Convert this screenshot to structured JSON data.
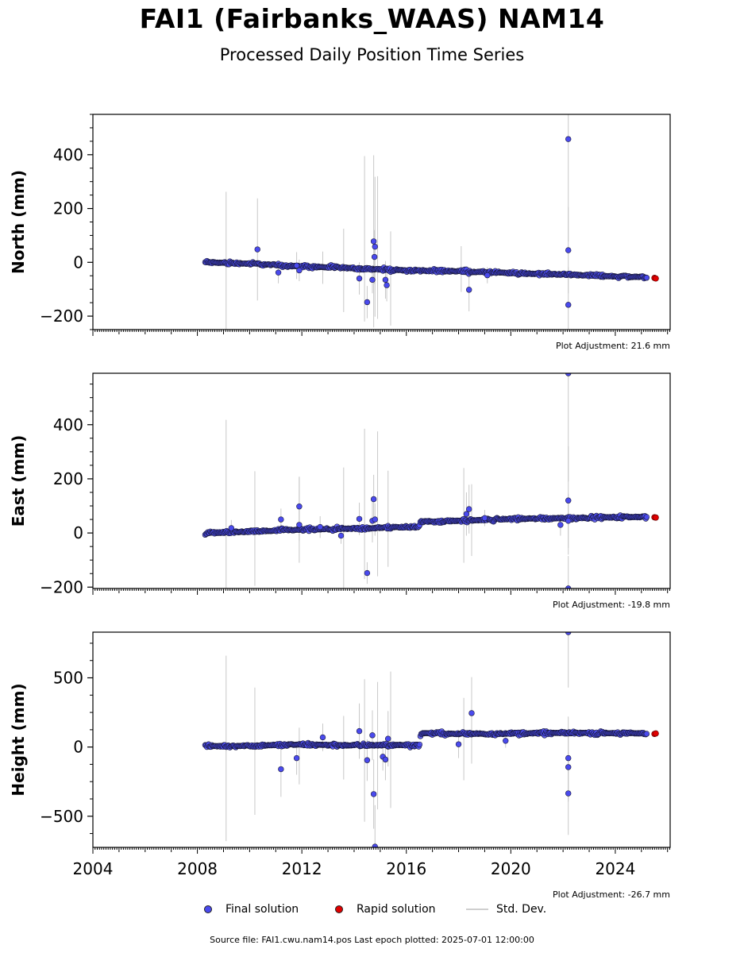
{
  "header": {
    "title": "FAI1 (Fairbanks_WAAS) NAM14",
    "subtitle": "Processed Daily Position Time Series"
  },
  "legend": {
    "final_label": "Final solution",
    "rapid_label": "Rapid solution",
    "std_label": "Std. Dev."
  },
  "footer": {
    "text": "Source file: FAI1.cwu.nam14.pos  Last epoch plotted: 2025-07-01 12:00:00"
  },
  "colors": {
    "final": "#4a4aee",
    "rapid": "#e00000",
    "stddev": "#c8c8c8",
    "marker_edge": "#1a1a3a"
  },
  "chart_data": [
    {
      "type": "scatter",
      "ylabel": "North (mm)",
      "adjustment": "Plot Adjustment: 21.6 mm",
      "xlim": [
        2004.0,
        2026.1
      ],
      "ylim": [
        -250,
        550
      ],
      "yticks": [
        -200,
        0,
        200,
        400
      ],
      "xticks": [
        2004,
        2008,
        2012,
        2016,
        2020,
        2024
      ],
      "show_xtick_labels": false,
      "trend": [
        [
          2008.3,
          0
        ],
        [
          2010.0,
          -5
        ],
        [
          2012.0,
          -15
        ],
        [
          2014.0,
          -22
        ],
        [
          2016.0,
          -30
        ],
        [
          2018.0,
          -33
        ],
        [
          2020.0,
          -40
        ],
        [
          2022.0,
          -45
        ],
        [
          2024.0,
          -52
        ],
        [
          2025.2,
          -55
        ]
      ],
      "outliers": [
        {
          "x": 2010.3,
          "y": 48,
          "err": 190
        },
        {
          "x": 2011.1,
          "y": -38,
          "err": 40
        },
        {
          "x": 2011.8,
          "y": -12,
          "err": 50
        },
        {
          "x": 2011.9,
          "y": -30,
          "err": 40
        },
        {
          "x": 2014.2,
          "y": -60,
          "err": 60
        },
        {
          "x": 2014.5,
          "y": -148,
          "err": 60
        },
        {
          "x": 2014.7,
          "y": -65,
          "err": 50
        },
        {
          "x": 2014.75,
          "y": 78,
          "err": 320
        },
        {
          "x": 2014.8,
          "y": 58,
          "err": 260
        },
        {
          "x": 2014.78,
          "y": 20,
          "err": 100
        },
        {
          "x": 2015.2,
          "y": -65,
          "err": 70
        },
        {
          "x": 2015.25,
          "y": -85,
          "err": 60
        },
        {
          "x": 2018.4,
          "y": -102,
          "err": 80
        },
        {
          "x": 2019.1,
          "y": -48,
          "err": 30
        },
        {
          "x": 2022.2,
          "y": 458,
          "err": 380
        },
        {
          "x": 2022.2,
          "y": 45,
          "err": 160
        },
        {
          "x": 2022.2,
          "y": -158,
          "err": 140
        }
      ],
      "std_spikes": [
        {
          "x": 2009.1,
          "lo": -250,
          "hi": 262
        },
        {
          "x": 2012.8,
          "lo": -80,
          "hi": 40
        },
        {
          "x": 2013.6,
          "lo": -185,
          "hi": 125
        },
        {
          "x": 2014.4,
          "lo": -220,
          "hi": 395
        },
        {
          "x": 2014.9,
          "lo": -210,
          "hi": 320
        },
        {
          "x": 2015.4,
          "lo": -235,
          "hi": 115
        },
        {
          "x": 2018.1,
          "lo": -110,
          "hi": 60
        }
      ],
      "rapid": [
        {
          "x": 2025.5,
          "y": -58
        },
        {
          "x": 2025.55,
          "y": -60
        }
      ]
    },
    {
      "type": "scatter",
      "ylabel": "East (mm)",
      "adjustment": "Plot Adjustment: -19.8 mm",
      "xlim": [
        2004.0,
        2026.1
      ],
      "ylim": [
        -205,
        590
      ],
      "yticks": [
        -200,
        0,
        200,
        400
      ],
      "xticks": [
        2004,
        2008,
        2012,
        2016,
        2020,
        2024
      ],
      "show_xtick_labels": false,
      "trend": [
        [
          2008.3,
          0
        ],
        [
          2010.0,
          5
        ],
        [
          2012.0,
          12
        ],
        [
          2014.0,
          16
        ],
        [
          2016.0,
          22
        ],
        [
          2016.5,
          25
        ],
        [
          2016.55,
          42
        ],
        [
          2018.0,
          45
        ],
        [
          2020.0,
          52
        ],
        [
          2022.0,
          55
        ],
        [
          2024.0,
          58
        ],
        [
          2025.2,
          60
        ]
      ],
      "outliers": [
        {
          "x": 2009.3,
          "y": 18,
          "err": 30
        },
        {
          "x": 2011.2,
          "y": 50,
          "err": 40
        },
        {
          "x": 2011.9,
          "y": 98,
          "err": 110
        },
        {
          "x": 2011.9,
          "y": 30,
          "err": 60
        },
        {
          "x": 2012.7,
          "y": 22,
          "err": 40
        },
        {
          "x": 2013.5,
          "y": -10,
          "err": 30
        },
        {
          "x": 2014.2,
          "y": 52,
          "err": 60
        },
        {
          "x": 2014.5,
          "y": -148,
          "err": 40
        },
        {
          "x": 2014.7,
          "y": 45,
          "err": 80
        },
        {
          "x": 2014.75,
          "y": 125,
          "err": 90
        },
        {
          "x": 2014.8,
          "y": 50,
          "err": 60
        },
        {
          "x": 2018.3,
          "y": 70,
          "err": 80
        },
        {
          "x": 2018.4,
          "y": 88,
          "err": 90
        },
        {
          "x": 2019.0,
          "y": 55,
          "err": 30
        },
        {
          "x": 2021.9,
          "y": 30,
          "err": 40
        },
        {
          "x": 2022.2,
          "y": 590,
          "err": 400
        },
        {
          "x": 2022.2,
          "y": 120,
          "err": 200
        },
        {
          "x": 2022.2,
          "y": 45,
          "err": 100
        },
        {
          "x": 2022.2,
          "y": -205,
          "err": 120
        }
      ],
      "std_spikes": [
        {
          "x": 2009.1,
          "lo": -205,
          "hi": 418
        },
        {
          "x": 2010.2,
          "lo": -195,
          "hi": 228
        },
        {
          "x": 2011.9,
          "lo": -110,
          "hi": 207
        },
        {
          "x": 2013.6,
          "lo": -205,
          "hi": 242
        },
        {
          "x": 2014.4,
          "lo": -170,
          "hi": 385
        },
        {
          "x": 2014.9,
          "lo": -160,
          "hi": 375
        },
        {
          "x": 2015.3,
          "lo": -125,
          "hi": 230
        },
        {
          "x": 2018.2,
          "lo": -110,
          "hi": 240
        },
        {
          "x": 2018.5,
          "lo": -85,
          "hi": 180
        }
      ],
      "rapid": [
        {
          "x": 2025.5,
          "y": 58
        },
        {
          "x": 2025.55,
          "y": 57
        }
      ]
    },
    {
      "type": "scatter",
      "ylabel": "Height (mm)",
      "adjustment": "Plot Adjustment: -26.7 mm",
      "xlim": [
        2004.0,
        2026.1
      ],
      "ylim": [
        -725,
        830
      ],
      "yticks": [
        -500,
        0,
        500
      ],
      "xticks": [
        2004,
        2008,
        2012,
        2016,
        2020,
        2024
      ],
      "show_xtick_labels": true,
      "trend": [
        [
          2008.3,
          5
        ],
        [
          2010.0,
          10
        ],
        [
          2012.0,
          18
        ],
        [
          2014.0,
          12
        ],
        [
          2016.0,
          15
        ],
        [
          2016.5,
          10
        ],
        [
          2016.55,
          100
        ],
        [
          2018.0,
          95
        ],
        [
          2020.0,
          98
        ],
        [
          2022.0,
          102
        ],
        [
          2024.0,
          100
        ],
        [
          2025.2,
          98
        ]
      ],
      "outliers": [
        {
          "x": 2011.2,
          "y": -160,
          "err": 200
        },
        {
          "x": 2011.8,
          "y": -80,
          "err": 120
        },
        {
          "x": 2012.8,
          "y": 70,
          "err": 100
        },
        {
          "x": 2014.2,
          "y": 115,
          "err": 200
        },
        {
          "x": 2014.5,
          "y": -95,
          "err": 150
        },
        {
          "x": 2014.7,
          "y": 85,
          "err": 180
        },
        {
          "x": 2014.75,
          "y": -340,
          "err": 250
        },
        {
          "x": 2014.8,
          "y": -720,
          "err": 300
        },
        {
          "x": 2015.1,
          "y": -70,
          "err": 100
        },
        {
          "x": 2015.2,
          "y": -90,
          "err": 150
        },
        {
          "x": 2015.3,
          "y": 60,
          "err": 200
        },
        {
          "x": 2018.0,
          "y": 20,
          "err": 100
        },
        {
          "x": 2018.5,
          "y": 245,
          "err": 250
        },
        {
          "x": 2019.8,
          "y": 45,
          "err": 50
        },
        {
          "x": 2022.2,
          "y": 830,
          "err": 400
        },
        {
          "x": 2022.2,
          "y": -80,
          "err": 300
        },
        {
          "x": 2022.2,
          "y": -145,
          "err": 250
        },
        {
          "x": 2022.2,
          "y": -335,
          "err": 300
        }
      ],
      "std_spikes": [
        {
          "x": 2009.1,
          "lo": -680,
          "hi": 660
        },
        {
          "x": 2010.2,
          "lo": -490,
          "hi": 430
        },
        {
          "x": 2011.9,
          "lo": -270,
          "hi": 140
        },
        {
          "x": 2013.6,
          "lo": -235,
          "hi": 225
        },
        {
          "x": 2014.4,
          "lo": -540,
          "hi": 490
        },
        {
          "x": 2014.9,
          "lo": -450,
          "hi": 470
        },
        {
          "x": 2015.4,
          "lo": -440,
          "hi": 545
        },
        {
          "x": 2018.2,
          "lo": -240,
          "hi": 355
        },
        {
          "x": 2018.5,
          "lo": -120,
          "hi": 505
        }
      ],
      "rapid": [
        {
          "x": 2025.5,
          "y": 95
        },
        {
          "x": 2025.55,
          "y": 98
        }
      ]
    }
  ]
}
